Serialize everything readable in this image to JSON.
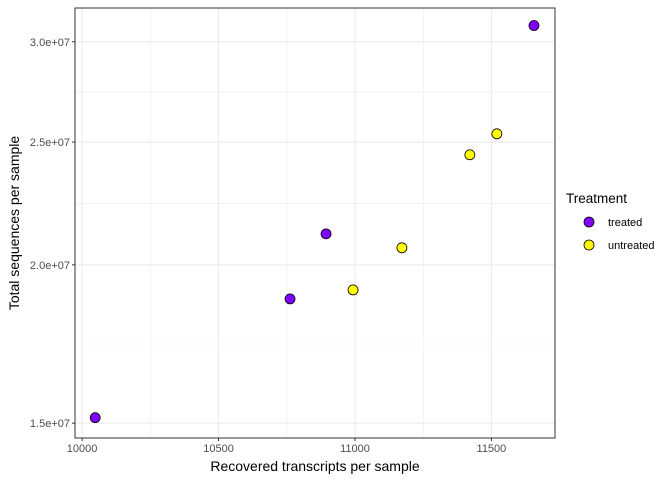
{
  "chart_data": {
    "type": "scatter",
    "title": "",
    "xlabel": "Recovered transcripts per sample",
    "ylabel": "Total sequences per sample",
    "x_scale": "linear",
    "y_scale": "log",
    "xlim": [
      9974,
      11733
    ],
    "ylim": [
      14600000,
      31900000
    ],
    "x_ticks": [
      10000,
      10500,
      11000,
      11500
    ],
    "x_tick_labels": [
      "10000",
      "10500",
      "11000",
      "11500"
    ],
    "y_ticks": [
      15000000,
      20000000,
      25000000,
      30000000
    ],
    "y_tick_labels": [
      "1.5e+07",
      "2.0e+07",
      "2.5e+07",
      "3.0e+07"
    ],
    "grid": true,
    "legend": {
      "title": "Treatment",
      "placement": "right",
      "entries": [
        {
          "label": "treated",
          "color": "#8000ff"
        },
        {
          "label": "untreated",
          "color": "#ffff00"
        }
      ]
    },
    "series": [
      {
        "name": "treated",
        "color": "#8000ff",
        "points": [
          {
            "x": 10048,
            "y": 15150000
          },
          {
            "x": 10762,
            "y": 18800000
          },
          {
            "x": 10894,
            "y": 21160000
          },
          {
            "x": 11656,
            "y": 30900000
          }
        ]
      },
      {
        "name": "untreated",
        "color": "#ffff00",
        "points": [
          {
            "x": 10993,
            "y": 19110000
          },
          {
            "x": 11172,
            "y": 20630000
          },
          {
            "x": 11421,
            "y": 24430000
          },
          {
            "x": 11520,
            "y": 25380000
          }
        ]
      }
    ]
  }
}
